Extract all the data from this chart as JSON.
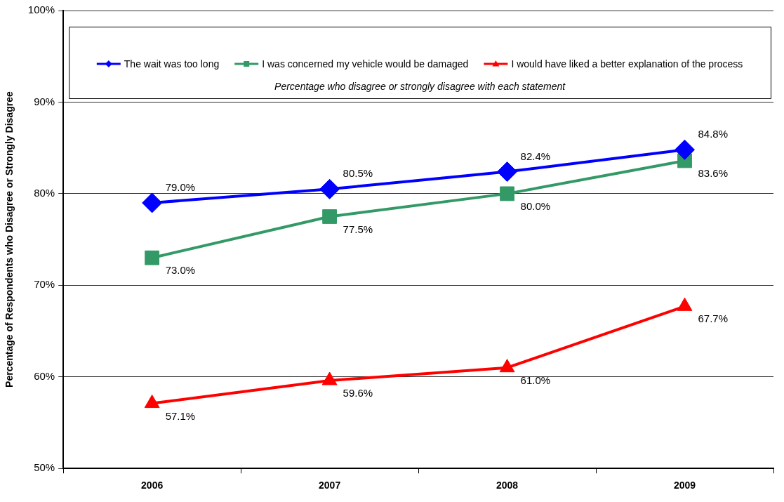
{
  "chart_data": {
    "type": "line",
    "ylabel": "Percentage of Respondents who Disagree or Strongly Disagree",
    "categories": [
      "2006",
      "2007",
      "2008",
      "2009"
    ],
    "series": [
      {
        "name": "The wait was too long",
        "color": "#0000ff",
        "marker": "diamond",
        "values": [
          79.0,
          80.5,
          82.4,
          84.8
        ],
        "value_labels": [
          "79.0%",
          "80.5%",
          "82.4%",
          "84.8%"
        ]
      },
      {
        "name": "I was concerned my vehicle would be damaged",
        "color": "#339966",
        "marker": "square",
        "values": [
          73.0,
          77.5,
          80.0,
          83.6
        ],
        "value_labels": [
          "73.0%",
          "77.5%",
          "80.0%",
          "83.6%"
        ]
      },
      {
        "name": "I would have liked a better explanation of the process",
        "color": "#ff0000",
        "marker": "triangle",
        "values": [
          57.1,
          59.6,
          61.0,
          67.7
        ],
        "value_labels": [
          "57.1%",
          "59.6%",
          "61.0%",
          "67.7%"
        ]
      }
    ],
    "ylim": [
      50,
      100
    ],
    "yticks": [
      {
        "value": 50,
        "label": "50%"
      },
      {
        "value": 60,
        "label": "60%"
      },
      {
        "value": 70,
        "label": "70%"
      },
      {
        "value": 80,
        "label": "80%"
      },
      {
        "value": 90,
        "label": "90%"
      },
      {
        "value": 100,
        "label": "100%"
      }
    ],
    "grid": "y",
    "legend": "top",
    "annotations": [
      "Percentage who disagree or strongly disagree with each statement"
    ]
  }
}
